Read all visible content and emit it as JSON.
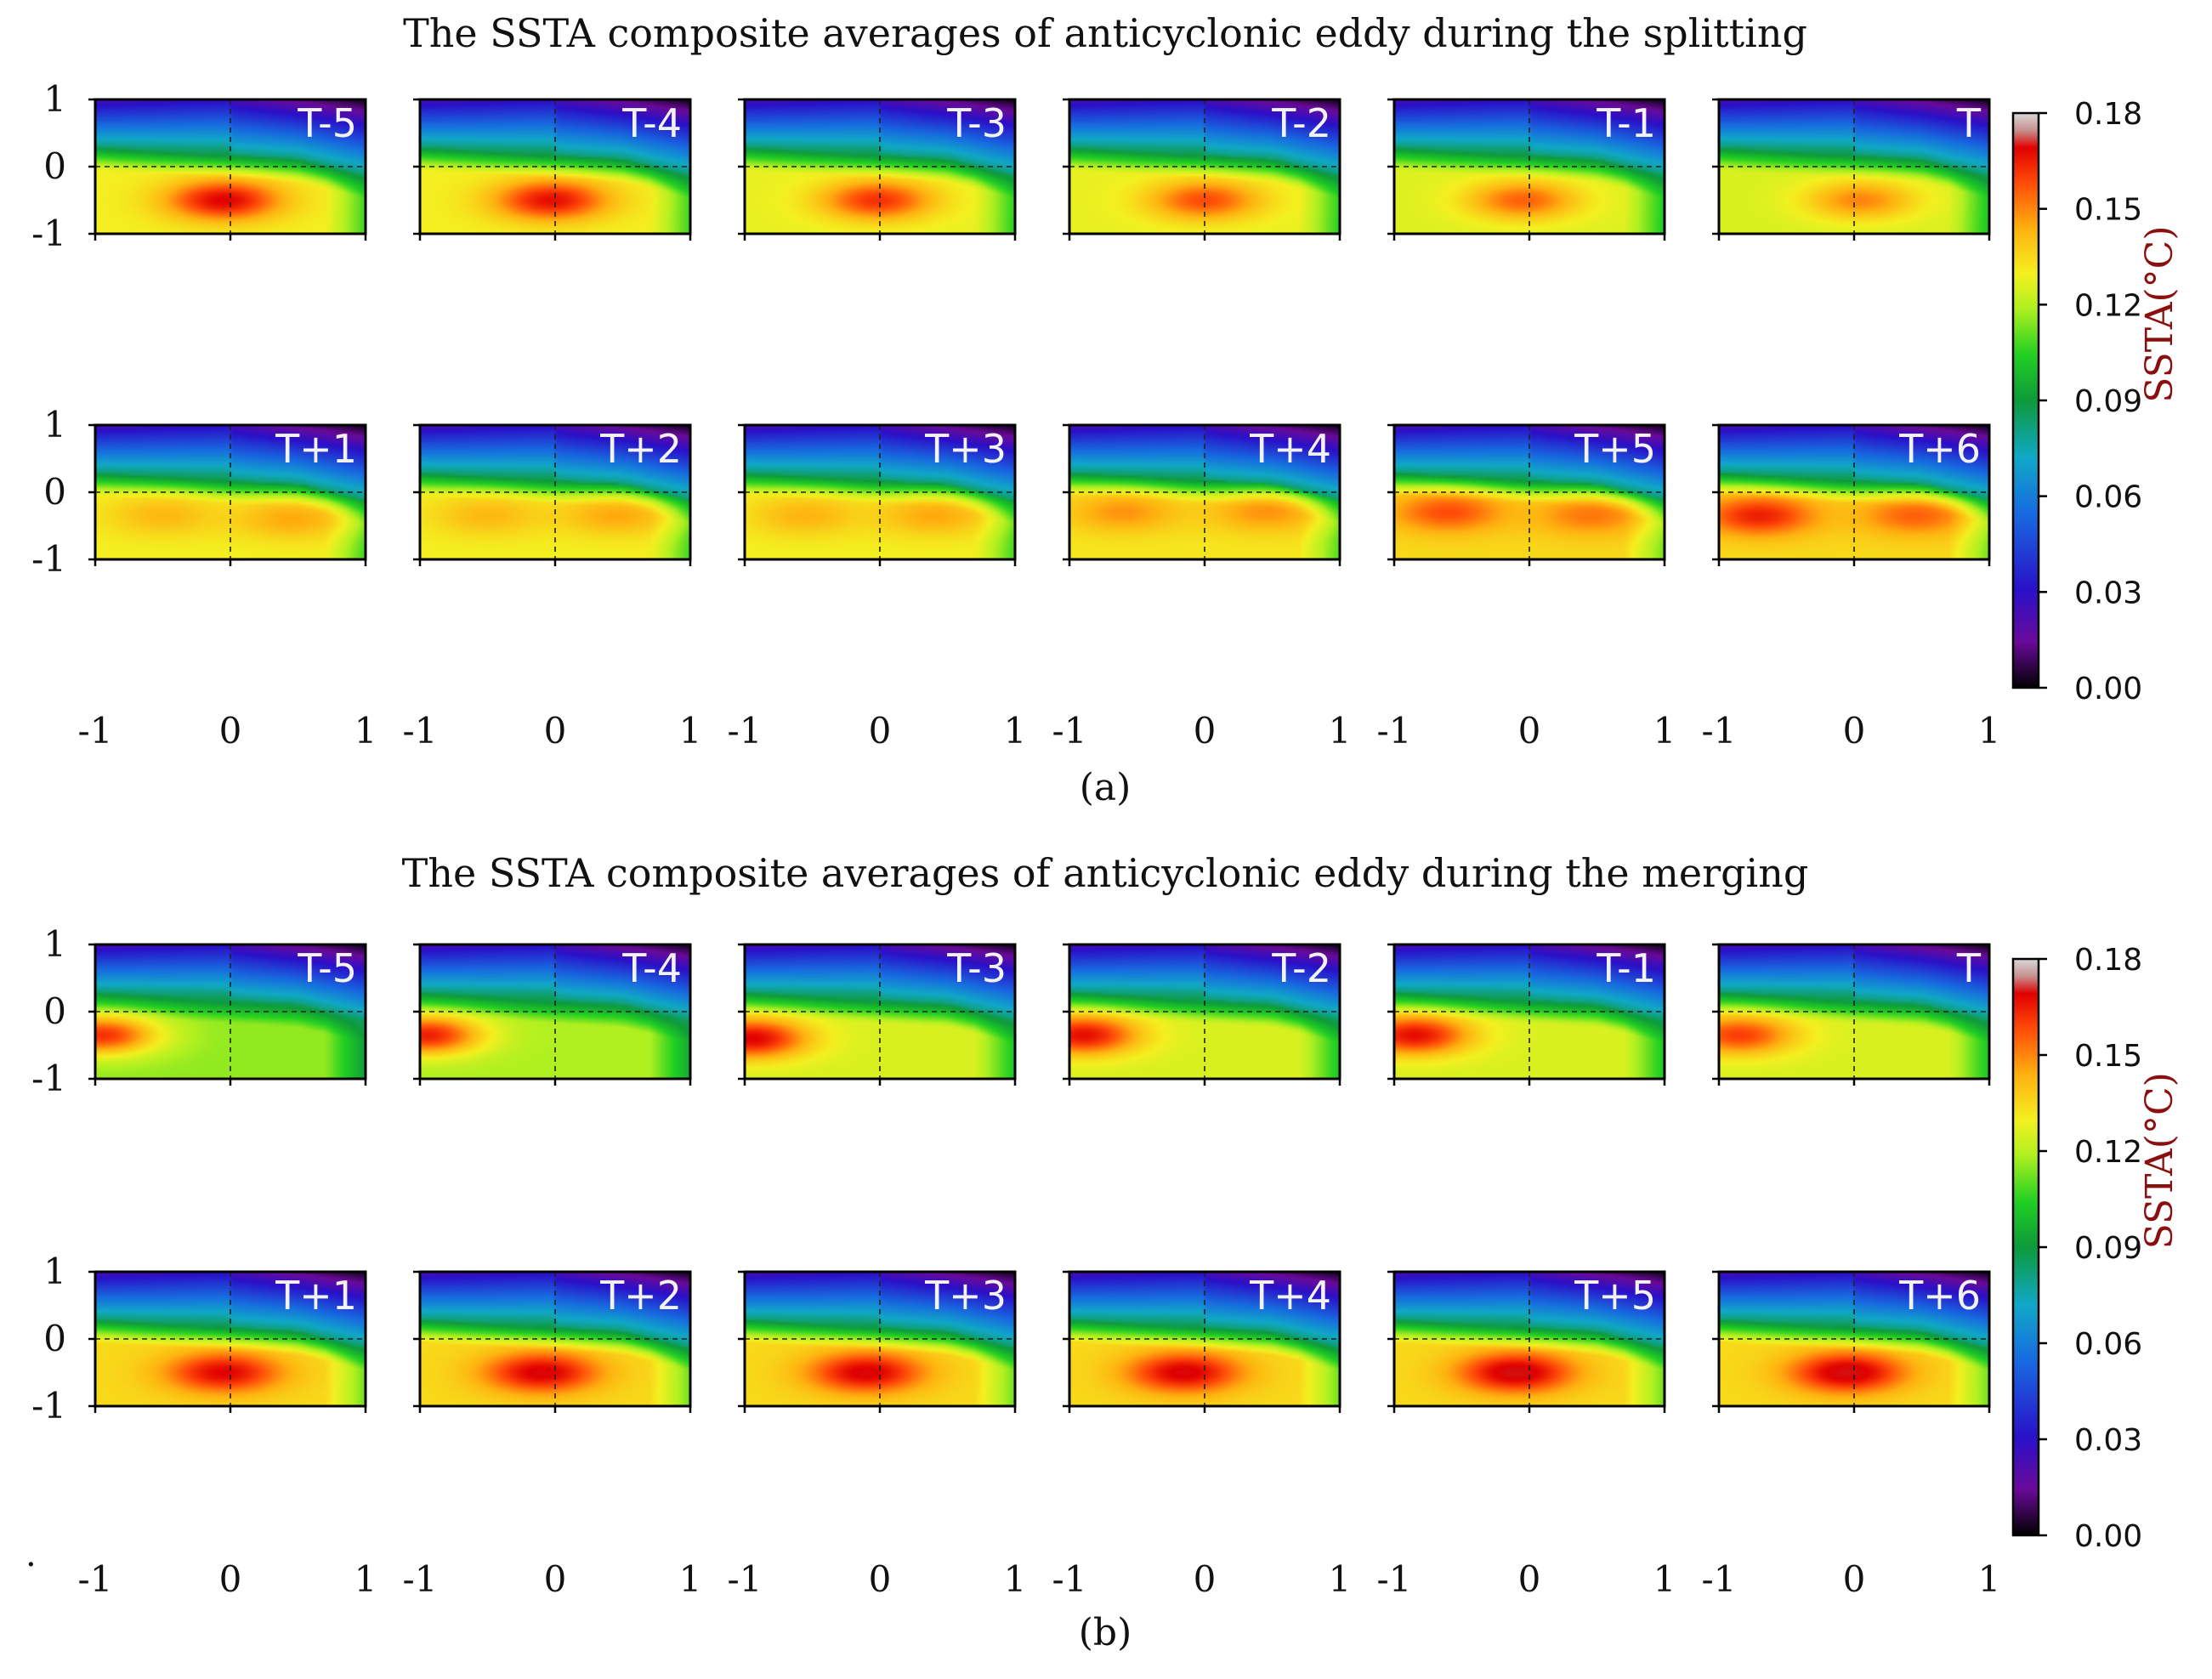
{
  "chart_data": [
    {
      "type": "heatmap",
      "id": "a",
      "title": "The SSTA composite averages of anticyclonic eddy during the splitting",
      "caption": "(a)",
      "xlim": [
        -1,
        1
      ],
      "ylim": [
        -1,
        1
      ],
      "xticks": [
        "-1",
        "0",
        "1"
      ],
      "yticks": [
        "1",
        "0",
        "-1"
      ],
      "colorbar": {
        "label": "SSTA(°C)",
        "ticks": [
          "0.18",
          "0.15",
          "0.12",
          "0.09",
          "0.06",
          "0.03",
          "0.00"
        ],
        "range": [
          0.0,
          0.18
        ]
      },
      "rows": [
        [
          {
            "label": "T-5",
            "blobs": [
              {
                "x": -0.05,
                "y": -0.5,
                "a": 0.17
              }
            ],
            "base": 0.13
          },
          {
            "label": "T-4",
            "blobs": [
              {
                "x": -0.03,
                "y": -0.5,
                "a": 0.168
              }
            ],
            "base": 0.13
          },
          {
            "label": "T-3",
            "blobs": [
              {
                "x": -0.02,
                "y": -0.5,
                "a": 0.162
              }
            ],
            "base": 0.128
          },
          {
            "label": "T-2",
            "blobs": [
              {
                "x": 0.0,
                "y": -0.5,
                "a": 0.158
              }
            ],
            "base": 0.128
          },
          {
            "label": "T-1",
            "blobs": [
              {
                "x": -0.05,
                "y": -0.5,
                "a": 0.155
              }
            ],
            "base": 0.126
          },
          {
            "label": "T",
            "blobs": [
              {
                "x": 0.05,
                "y": -0.5,
                "a": 0.15
              }
            ],
            "base": 0.125
          }
        ],
        [
          {
            "label": "T+1",
            "blobs": [
              {
                "x": -0.5,
                "y": -0.35,
                "a": 0.142
              },
              {
                "x": 0.45,
                "y": -0.4,
                "a": 0.145
              }
            ],
            "base": 0.13
          },
          {
            "label": "T+2",
            "blobs": [
              {
                "x": -0.5,
                "y": -0.35,
                "a": 0.142
              },
              {
                "x": 0.45,
                "y": -0.35,
                "a": 0.145
              }
            ],
            "base": 0.13
          },
          {
            "label": "T+3",
            "blobs": [
              {
                "x": -0.55,
                "y": -0.35,
                "a": 0.143
              },
              {
                "x": 0.4,
                "y": -0.35,
                "a": 0.145
              }
            ],
            "base": 0.13
          },
          {
            "label": "T+4",
            "blobs": [
              {
                "x": -0.6,
                "y": -0.3,
                "a": 0.148
              },
              {
                "x": 0.45,
                "y": -0.3,
                "a": 0.148
              }
            ],
            "base": 0.132
          },
          {
            "label": "T+5",
            "blobs": [
              {
                "x": -0.6,
                "y": -0.3,
                "a": 0.158
              },
              {
                "x": 0.45,
                "y": -0.35,
                "a": 0.152
              }
            ],
            "base": 0.135
          },
          {
            "label": "T+6",
            "blobs": [
              {
                "x": -0.7,
                "y": -0.35,
                "a": 0.165
              },
              {
                "x": 0.45,
                "y": -0.35,
                "a": 0.155
              }
            ],
            "base": 0.135
          }
        ]
      ]
    },
    {
      "type": "heatmap",
      "id": "b",
      "title": "The SSTA composite averages of anticyclonic eddy during the merging",
      "caption": "(b)",
      "xlim": [
        -1,
        1
      ],
      "ylim": [
        -1,
        1
      ],
      "xticks": [
        "-1",
        "0",
        "1"
      ],
      "yticks": [
        "1",
        "0",
        "-1"
      ],
      "colorbar": {
        "label": "SSTA(°C)",
        "ticks": [
          "0.18",
          "0.15",
          "0.12",
          "0.09",
          "0.06",
          "0.03",
          "0.00"
        ],
        "range": [
          0.0,
          0.18
        ]
      },
      "rows": [
        [
          {
            "label": "T-5",
            "blobs": [
              {
                "x": -0.95,
                "y": -0.35,
                "a": 0.162
              }
            ],
            "base": 0.115
          },
          {
            "label": "T-4",
            "blobs": [
              {
                "x": -0.95,
                "y": -0.35,
                "a": 0.165
              }
            ],
            "base": 0.118
          },
          {
            "label": "T-3",
            "blobs": [
              {
                "x": -0.95,
                "y": -0.4,
                "a": 0.17
              }
            ],
            "base": 0.125
          },
          {
            "label": "T-2",
            "blobs": [
              {
                "x": -0.9,
                "y": -0.35,
                "a": 0.168
              }
            ],
            "base": 0.125
          },
          {
            "label": "T-1",
            "blobs": [
              {
                "x": -0.85,
                "y": -0.35,
                "a": 0.168
              }
            ],
            "base": 0.125
          },
          {
            "label": "T",
            "blobs": [
              {
                "x": -0.85,
                "y": -0.35,
                "a": 0.16
              }
            ],
            "base": 0.125
          }
        ],
        [
          {
            "label": "T+1",
            "blobs": [
              {
                "x": -0.05,
                "y": -0.5,
                "a": 0.17
              }
            ],
            "base": 0.135
          },
          {
            "label": "T+2",
            "blobs": [
              {
                "x": -0.1,
                "y": -0.5,
                "a": 0.172
              }
            ],
            "base": 0.135
          },
          {
            "label": "T+3",
            "blobs": [
              {
                "x": -0.1,
                "y": -0.5,
                "a": 0.172
              }
            ],
            "base": 0.135
          },
          {
            "label": "T+4",
            "blobs": [
              {
                "x": -0.15,
                "y": -0.5,
                "a": 0.172
              }
            ],
            "base": 0.135
          },
          {
            "label": "T+5",
            "blobs": [
              {
                "x": -0.1,
                "y": -0.5,
                "a": 0.175
              }
            ],
            "base": 0.135
          },
          {
            "label": "T+6",
            "blobs": [
              {
                "x": -0.05,
                "y": -0.5,
                "a": 0.175
              }
            ],
            "base": 0.135
          }
        ]
      ]
    }
  ],
  "bottom_left_mark": "."
}
